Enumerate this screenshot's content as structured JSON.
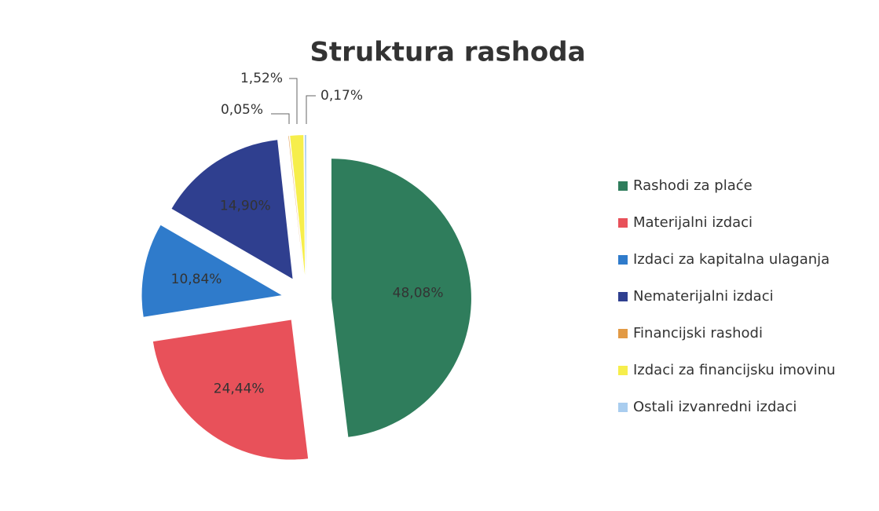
{
  "chart_data": {
    "type": "pie",
    "title": "Struktura rashoda",
    "categories": [
      "Rashodi za plaće",
      "Materijalni izdaci",
      "Izdaci za kapitalna ulaganja",
      "Nematerijalni izdaci",
      "Financijski rashodi",
      "Izdaci za financijsku imovinu",
      "Ostali izvanredni izdaci"
    ],
    "values": [
      48.08,
      24.44,
      10.84,
      14.9,
      0.05,
      1.52,
      0.17
    ],
    "value_labels": [
      "48,08%",
      "24,44%",
      "10,84%",
      "14,90%",
      "0,05%",
      "1,52%",
      "0,17%"
    ],
    "colors": [
      "#2f7d5c",
      "#e8515a",
      "#2f7bcb",
      "#2f3f8f",
      "#e29a45",
      "#f6ee4c",
      "#a9cdef"
    ],
    "legend": "right"
  }
}
